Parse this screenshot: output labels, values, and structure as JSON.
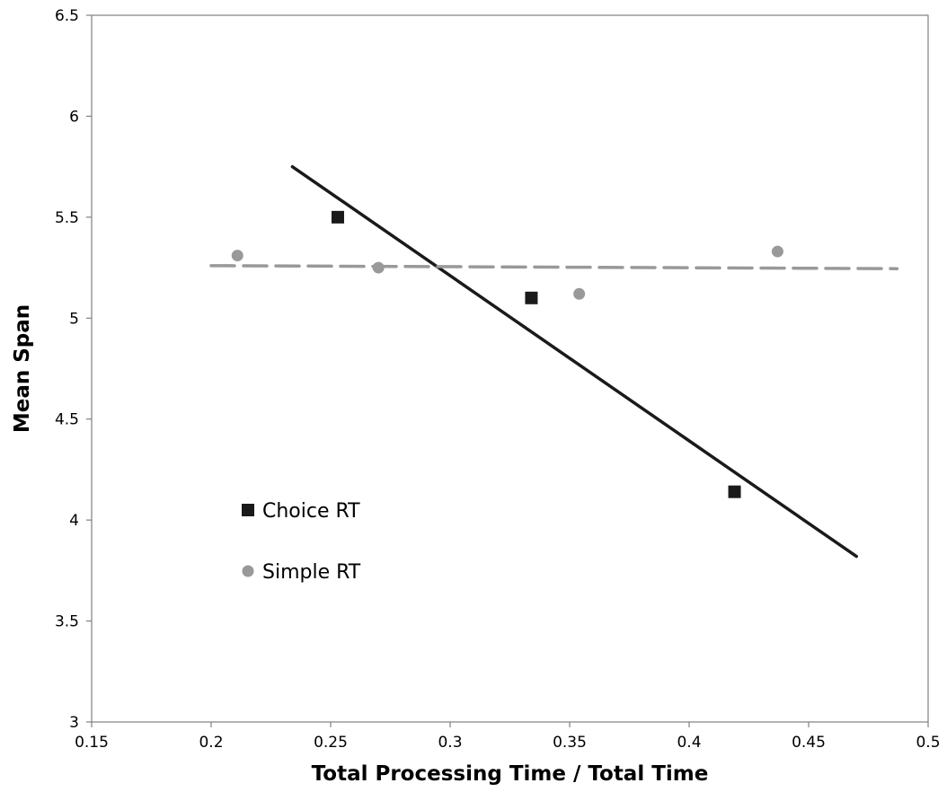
{
  "chart_data": {
    "type": "scatter",
    "xlabel": "Total Processing Time / Total Time",
    "ylabel": "Mean Span",
    "xlim": [
      0.15,
      0.5
    ],
    "ylim": [
      3,
      6.5
    ],
    "x_ticks": [
      "0.15",
      "0.2",
      "0.25",
      "0.3",
      "0.35",
      "0.4",
      "0.45",
      "0.5"
    ],
    "y_ticks": [
      "3",
      "3.5",
      "4",
      "4.5",
      "5",
      "5.5",
      "6",
      "6.5"
    ],
    "grid": false,
    "legend_position": "lower-left",
    "series": [
      {
        "name": "Choice RT",
        "marker": "square",
        "color": "#1a1a1a",
        "points": [
          {
            "x": 0.253,
            "y": 5.5
          },
          {
            "x": 0.334,
            "y": 5.1
          },
          {
            "x": 0.419,
            "y": 4.14
          }
        ],
        "trendline": {
          "style": "solid",
          "color": "#1a1a1a",
          "from": {
            "x": 0.234,
            "y": 5.75
          },
          "to": {
            "x": 0.47,
            "y": 3.82
          }
        }
      },
      {
        "name": "Simple RT",
        "marker": "circle",
        "color": "#999999",
        "points": [
          {
            "x": 0.211,
            "y": 5.31
          },
          {
            "x": 0.27,
            "y": 5.25
          },
          {
            "x": 0.354,
            "y": 5.12
          },
          {
            "x": 0.437,
            "y": 5.33
          }
        ],
        "trendline": {
          "style": "dashed",
          "color": "#999999",
          "from": {
            "x": 0.2,
            "y": 5.26
          },
          "to": {
            "x": 0.487,
            "y": 5.245
          }
        }
      }
    ]
  }
}
